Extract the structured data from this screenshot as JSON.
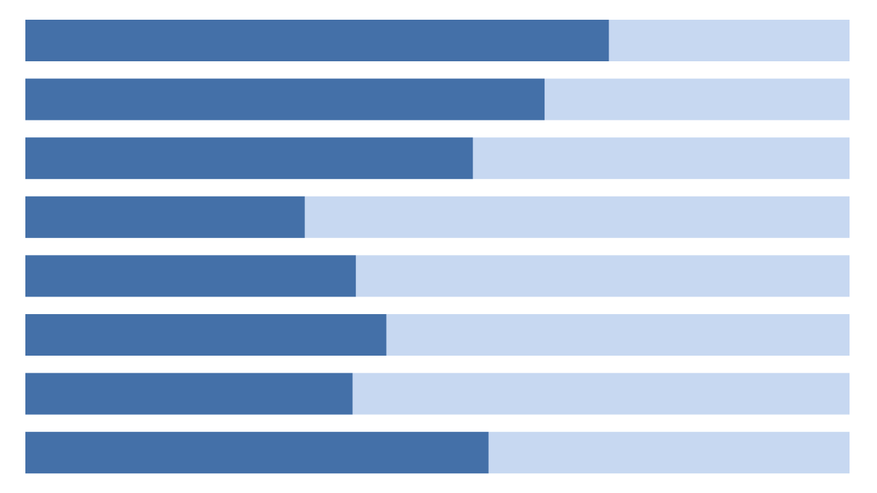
{
  "chart_data": {
    "type": "progress",
    "orientation": "horizontal",
    "values": [
      70.8,
      63.0,
      54.3,
      33.9,
      40.1,
      43.8,
      39.7,
      56.2
    ],
    "color": "#4470a8",
    "track_color": "#c7d8f1",
    "xlim": [
      0,
      100
    ]
  }
}
